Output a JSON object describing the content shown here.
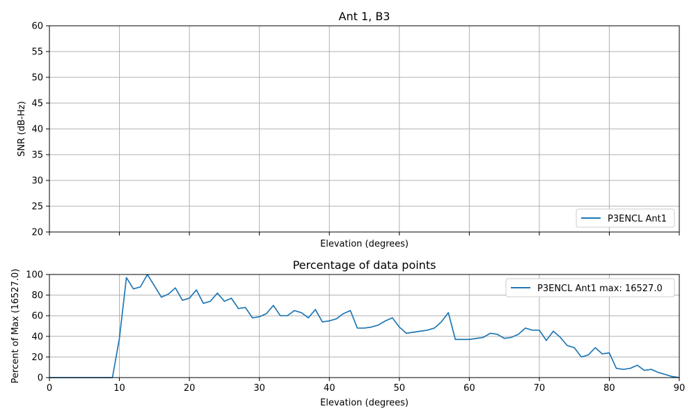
{
  "chart_data": [
    {
      "type": "line",
      "title": "Ant 1, B3",
      "xlabel": "Elevation (degrees)",
      "ylabel": "SNR (dB-Hz)",
      "xlim": [
        0,
        90
      ],
      "ylim": [
        20,
        60
      ],
      "x_ticks": [
        0,
        10,
        20,
        30,
        40,
        50,
        60,
        70,
        80,
        90
      ],
      "x_tick_labels_visible": false,
      "y_ticks": [
        20,
        25,
        30,
        35,
        40,
        45,
        50,
        55,
        60
      ],
      "grid": true,
      "legend_position": "lower-right",
      "series": [
        {
          "name": "P3ENCL Ant1",
          "color": "#1f77b4",
          "x": [],
          "y": []
        }
      ]
    },
    {
      "type": "line",
      "title": "Percentage of data points",
      "xlabel": "Elevation (degrees)",
      "ylabel": "Percent of Max (16527.0)",
      "xlim": [
        0,
        90
      ],
      "ylim": [
        0,
        100
      ],
      "x_ticks": [
        0,
        10,
        20,
        30,
        40,
        50,
        60,
        70,
        80,
        90
      ],
      "y_ticks": [
        0,
        20,
        40,
        60,
        80,
        100
      ],
      "grid": true,
      "legend_position": "upper-right",
      "series": [
        {
          "name": "P3ENCL Ant1 max: 16527.0",
          "color": "#1f77b4",
          "x": [
            0,
            1,
            2,
            3,
            4,
            5,
            6,
            7,
            8,
            9,
            10,
            11,
            12,
            13,
            14,
            15,
            16,
            17,
            18,
            19,
            20,
            21,
            22,
            23,
            24,
            25,
            26,
            27,
            28,
            29,
            30,
            31,
            32,
            33,
            34,
            35,
            36,
            37,
            38,
            39,
            40,
            41,
            42,
            43,
            44,
            45,
            46,
            47,
            48,
            49,
            50,
            51,
            52,
            53,
            54,
            55,
            56,
            57,
            58,
            59,
            60,
            61,
            62,
            63,
            64,
            65,
            66,
            67,
            68,
            69,
            70,
            71,
            72,
            73,
            74,
            75,
            76,
            77,
            78,
            79,
            80,
            81,
            82,
            83,
            84,
            85,
            86,
            87,
            88,
            89,
            90
          ],
          "y": [
            0,
            0,
            0,
            0,
            0,
            0,
            0,
            0,
            0,
            0,
            38,
            97,
            86,
            88,
            100,
            89,
            78,
            81,
            87,
            75,
            77,
            85,
            72,
            74,
            82,
            74,
            77,
            67,
            68,
            58,
            59,
            62,
            70,
            60,
            60,
            65,
            63,
            58,
            66,
            54,
            55,
            57,
            62,
            65,
            48,
            48,
            49,
            51,
            55,
            58,
            49,
            43,
            44,
            45,
            46,
            48,
            54,
            63,
            37,
            37,
            37,
            38,
            39,
            43,
            42,
            38,
            39,
            42,
            48,
            46,
            46,
            36,
            45,
            39,
            31,
            29,
            20,
            22,
            29,
            23,
            24,
            9,
            8,
            9,
            12,
            7,
            8,
            5,
            3,
            1,
            0
          ]
        }
      ]
    }
  ]
}
